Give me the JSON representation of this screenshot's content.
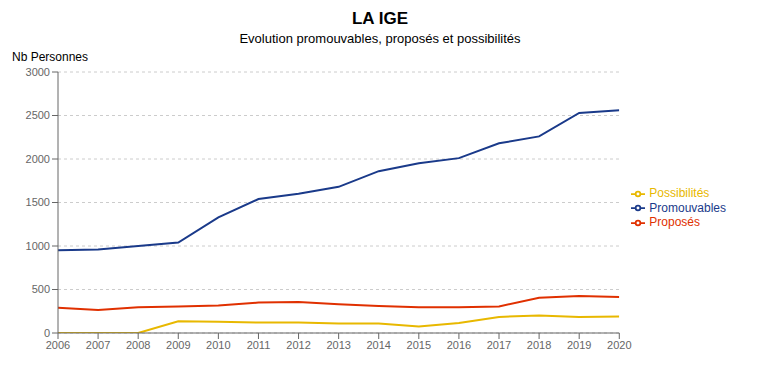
{
  "chart_data": {
    "type": "line",
    "title": "LA IGE",
    "subtitle": "Evolution promouvables, proposés et possibilités",
    "ylabel": "Nb Personnes",
    "x": [
      2006,
      2007,
      2008,
      2009,
      2010,
      2011,
      2012,
      2013,
      2014,
      2015,
      2016,
      2017,
      2018,
      2019,
      2020
    ],
    "series": [
      {
        "name": "Promouvables",
        "color": "#1a3a8a",
        "values": [
          950,
          960,
          1000,
          1040,
          1330,
          1540,
          1600,
          1680,
          1860,
          1950,
          2010,
          2180,
          2260,
          2530,
          2560
        ]
      },
      {
        "name": "Proposés",
        "color": "#e03000",
        "values": [
          290,
          265,
          295,
          305,
          315,
          350,
          355,
          330,
          310,
          295,
          295,
          305,
          405,
          425,
          415
        ]
      },
      {
        "name": "Possibilités",
        "color": "#e8b800",
        "values": [
          0,
          0,
          0,
          135,
          130,
          120,
          120,
          110,
          110,
          75,
          115,
          185,
          200,
          185,
          190
        ]
      }
    ],
    "xlim": [
      2006,
      2020
    ],
    "xticks": [
      2006,
      2007,
      2008,
      2009,
      2010,
      2011,
      2012,
      2013,
      2014,
      2015,
      2016,
      2017,
      2018,
      2019,
      2020
    ],
    "ylim": [
      0,
      3000
    ],
    "yticks": [
      0,
      500,
      1000,
      1500,
      2000,
      2500,
      3000
    ],
    "grid": true,
    "legend": "right"
  }
}
